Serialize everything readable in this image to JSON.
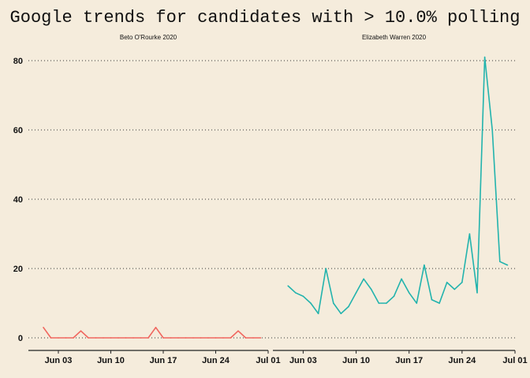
{
  "title": "Google trends for candidates with > 10.0% polling",
  "colors": {
    "background": "#f5ecdc",
    "beto": "#f0665e",
    "warren": "#22b3ad"
  },
  "chart_data": {
    "type": "line",
    "title": "Google trends for candidates with > 10.0% polling",
    "ylim": [
      0,
      80
    ],
    "yticks": [
      0,
      20,
      40,
      60,
      80
    ],
    "xlim": [
      "2020-05-30",
      "2020-07-01"
    ],
    "xticks": [
      {
        "date": "2020-06-03",
        "label": "Jun 03"
      },
      {
        "date": "2020-06-10",
        "label": "Jun 10"
      },
      {
        "date": "2020-06-17",
        "label": "Jun 17"
      },
      {
        "date": "2020-06-24",
        "label": "Jun 24"
      },
      {
        "date": "2020-07-01",
        "label": "Jul 01"
      }
    ],
    "grid": "horizontal dotted",
    "panels": [
      {
        "name": "Beto O'Rourke 2020",
        "color": "#f0665e",
        "x": [
          "2020-06-01",
          "2020-06-02",
          "2020-06-03",
          "2020-06-04",
          "2020-06-05",
          "2020-06-06",
          "2020-06-07",
          "2020-06-08",
          "2020-06-09",
          "2020-06-10",
          "2020-06-11",
          "2020-06-12",
          "2020-06-13",
          "2020-06-14",
          "2020-06-15",
          "2020-06-16",
          "2020-06-17",
          "2020-06-18",
          "2020-06-19",
          "2020-06-20",
          "2020-06-21",
          "2020-06-22",
          "2020-06-23",
          "2020-06-24",
          "2020-06-25",
          "2020-06-26",
          "2020-06-27",
          "2020-06-28",
          "2020-06-29",
          "2020-06-30"
        ],
        "y": [
          3,
          0,
          0,
          0,
          0,
          2,
          0,
          0,
          0,
          0,
          0,
          0,
          0,
          0,
          0,
          3,
          0,
          0,
          0,
          0,
          0,
          0,
          0,
          0,
          0,
          0,
          2,
          0,
          0,
          0
        ]
      },
      {
        "name": "Elizabeth Warren 2020",
        "color": "#22b3ad",
        "x": [
          "2020-06-01",
          "2020-06-02",
          "2020-06-03",
          "2020-06-04",
          "2020-06-05",
          "2020-06-06",
          "2020-06-07",
          "2020-06-08",
          "2020-06-09",
          "2020-06-10",
          "2020-06-11",
          "2020-06-12",
          "2020-06-13",
          "2020-06-14",
          "2020-06-15",
          "2020-06-16",
          "2020-06-17",
          "2020-06-18",
          "2020-06-19",
          "2020-06-20",
          "2020-06-21",
          "2020-06-22",
          "2020-06-23",
          "2020-06-24",
          "2020-06-25",
          "2020-06-26",
          "2020-06-27",
          "2020-06-28",
          "2020-06-29",
          "2020-06-30"
        ],
        "y": [
          15,
          13,
          12,
          10,
          7,
          20,
          10,
          7,
          9,
          13,
          17,
          14,
          10,
          10,
          12,
          17,
          13,
          10,
          21,
          11,
          10,
          16,
          14,
          16,
          30,
          13,
          81,
          60,
          22,
          21
        ]
      }
    ]
  }
}
